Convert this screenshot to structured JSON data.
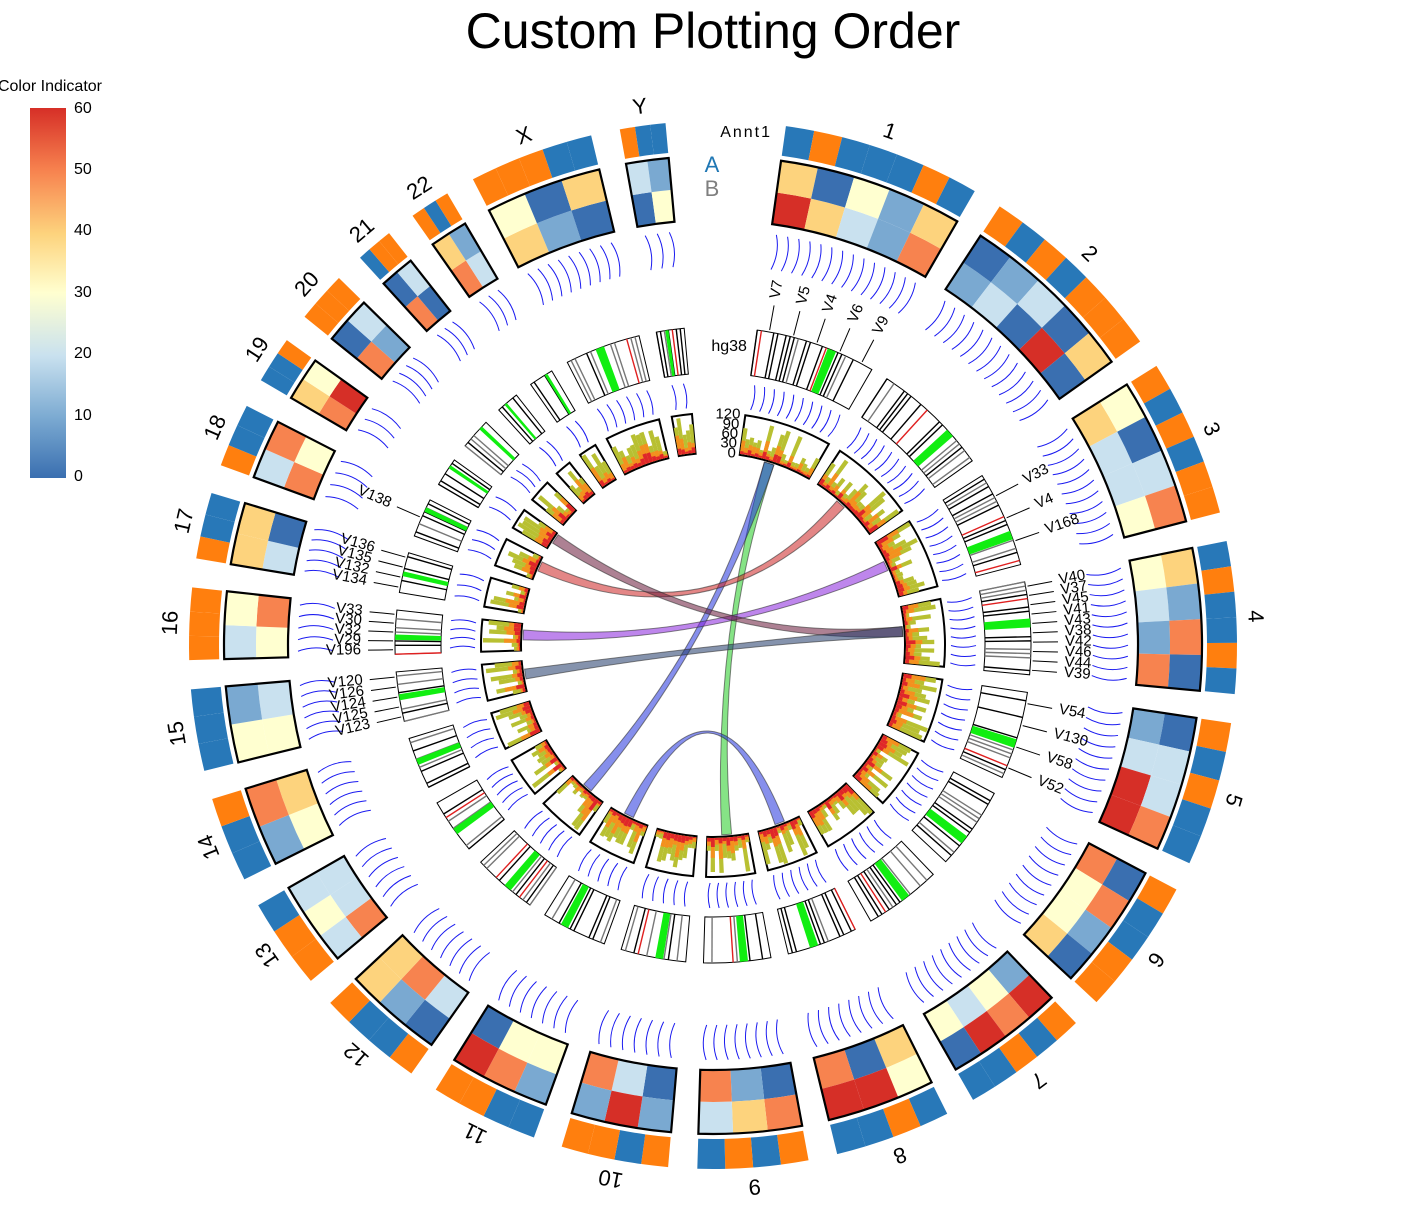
{
  "title": "Custom Plotting Order",
  "legend": {
    "title": "Color Indicator",
    "ticks": [
      "0",
      "10",
      "20",
      "30",
      "40",
      "50",
      "60"
    ],
    "colors": [
      "#3a6fb0",
      "#7aa9d1",
      "#c9e1ef",
      "#ffffd0",
      "#fdd37d",
      "#f7834f",
      "#d62f27"
    ]
  },
  "chart_data": {
    "type": "circos",
    "title": "Custom Plotting Order",
    "genome_label": "hg38",
    "annotation_track": {
      "label": "Annt1",
      "categories": [
        "A",
        "B"
      ],
      "colors": {
        "A": "#1f77b4",
        "B": "#7f7f7f"
      },
      "cell_colors": [
        "#2878b8",
        "#ff7f0e"
      ]
    },
    "histogram_axis": {
      "ticks": [
        "0",
        "30",
        "60",
        "90",
        "120"
      ],
      "range": [
        0,
        120
      ]
    },
    "heatmap_range": [
      0,
      60
    ],
    "chromosomes": [
      {
        "name": "1",
        "size": 248
      },
      {
        "name": "2",
        "size": 242
      },
      {
        "name": "3",
        "size": 198
      },
      {
        "name": "4",
        "size": 190
      },
      {
        "name": "5",
        "size": 181
      },
      {
        "name": "6",
        "size": 171
      },
      {
        "name": "7",
        "size": 159
      },
      {
        "name": "8",
        "size": 145
      },
      {
        "name": "9",
        "size": 138
      },
      {
        "name": "10",
        "size": 134
      },
      {
        "name": "11",
        "size": 135
      },
      {
        "name": "12",
        "size": 133
      },
      {
        "name": "13",
        "size": 114
      },
      {
        "name": "14",
        "size": 107
      },
      {
        "name": "15",
        "size": 102
      },
      {
        "name": "16",
        "size": 90
      },
      {
        "name": "17",
        "size": 83
      },
      {
        "name": "18",
        "size": 80
      },
      {
        "name": "19",
        "size": 59
      },
      {
        "name": "20",
        "size": 64
      },
      {
        "name": "21",
        "size": 47
      },
      {
        "name": "22",
        "size": 51
      },
      {
        "name": "X",
        "size": 156
      },
      {
        "name": "Y",
        "size": 57
      }
    ],
    "gene_labels": [
      {
        "chr": "1",
        "labels": [
          "V7",
          "V5",
          "V4",
          "V6",
          "V9"
        ]
      },
      {
        "chr": "3",
        "labels": [
          "V4"
        ]
      },
      {
        "chr": "4",
        "labels": [
          "V40",
          "V37",
          "V45",
          "V41",
          "V43",
          "V38",
          "V42",
          "V46",
          "V44",
          "V39"
        ]
      },
      {
        "chr": "5",
        "labels": [
          "V54",
          "V130",
          "V58",
          "V52"
        ]
      },
      {
        "chr": "16",
        "labels": [
          "V196",
          "V29",
          "V32",
          "V30",
          "V33"
        ]
      },
      {
        "chr": "17",
        "labels": [
          "V134",
          "V132",
          "V135",
          "V136"
        ]
      },
      {
        "chr": "3",
        "labels": [
          "V33",
          "V168"
        ]
      },
      {
        "chr": "15",
        "labels": [
          "V123",
          "V125",
          "V124",
          "V126",
          "V120"
        ]
      },
      {
        "chr": "18",
        "labels": [
          "V138"
        ]
      }
    ],
    "links": [
      {
        "from": "1",
        "to": "9",
        "color": "#22cc22"
      },
      {
        "from": "1",
        "to": "12",
        "color": "#2233dd"
      },
      {
        "from": "2",
        "to": "18",
        "color": "#cc2222"
      },
      {
        "from": "3",
        "to": "16",
        "color": "#8822dd"
      },
      {
        "from": "4",
        "to": "19",
        "color": "#6a1a3a"
      },
      {
        "from": "4",
        "to": "15",
        "color": "#203a6a"
      },
      {
        "from": "8",
        "to": "11",
        "color": "#2233dd"
      }
    ]
  }
}
